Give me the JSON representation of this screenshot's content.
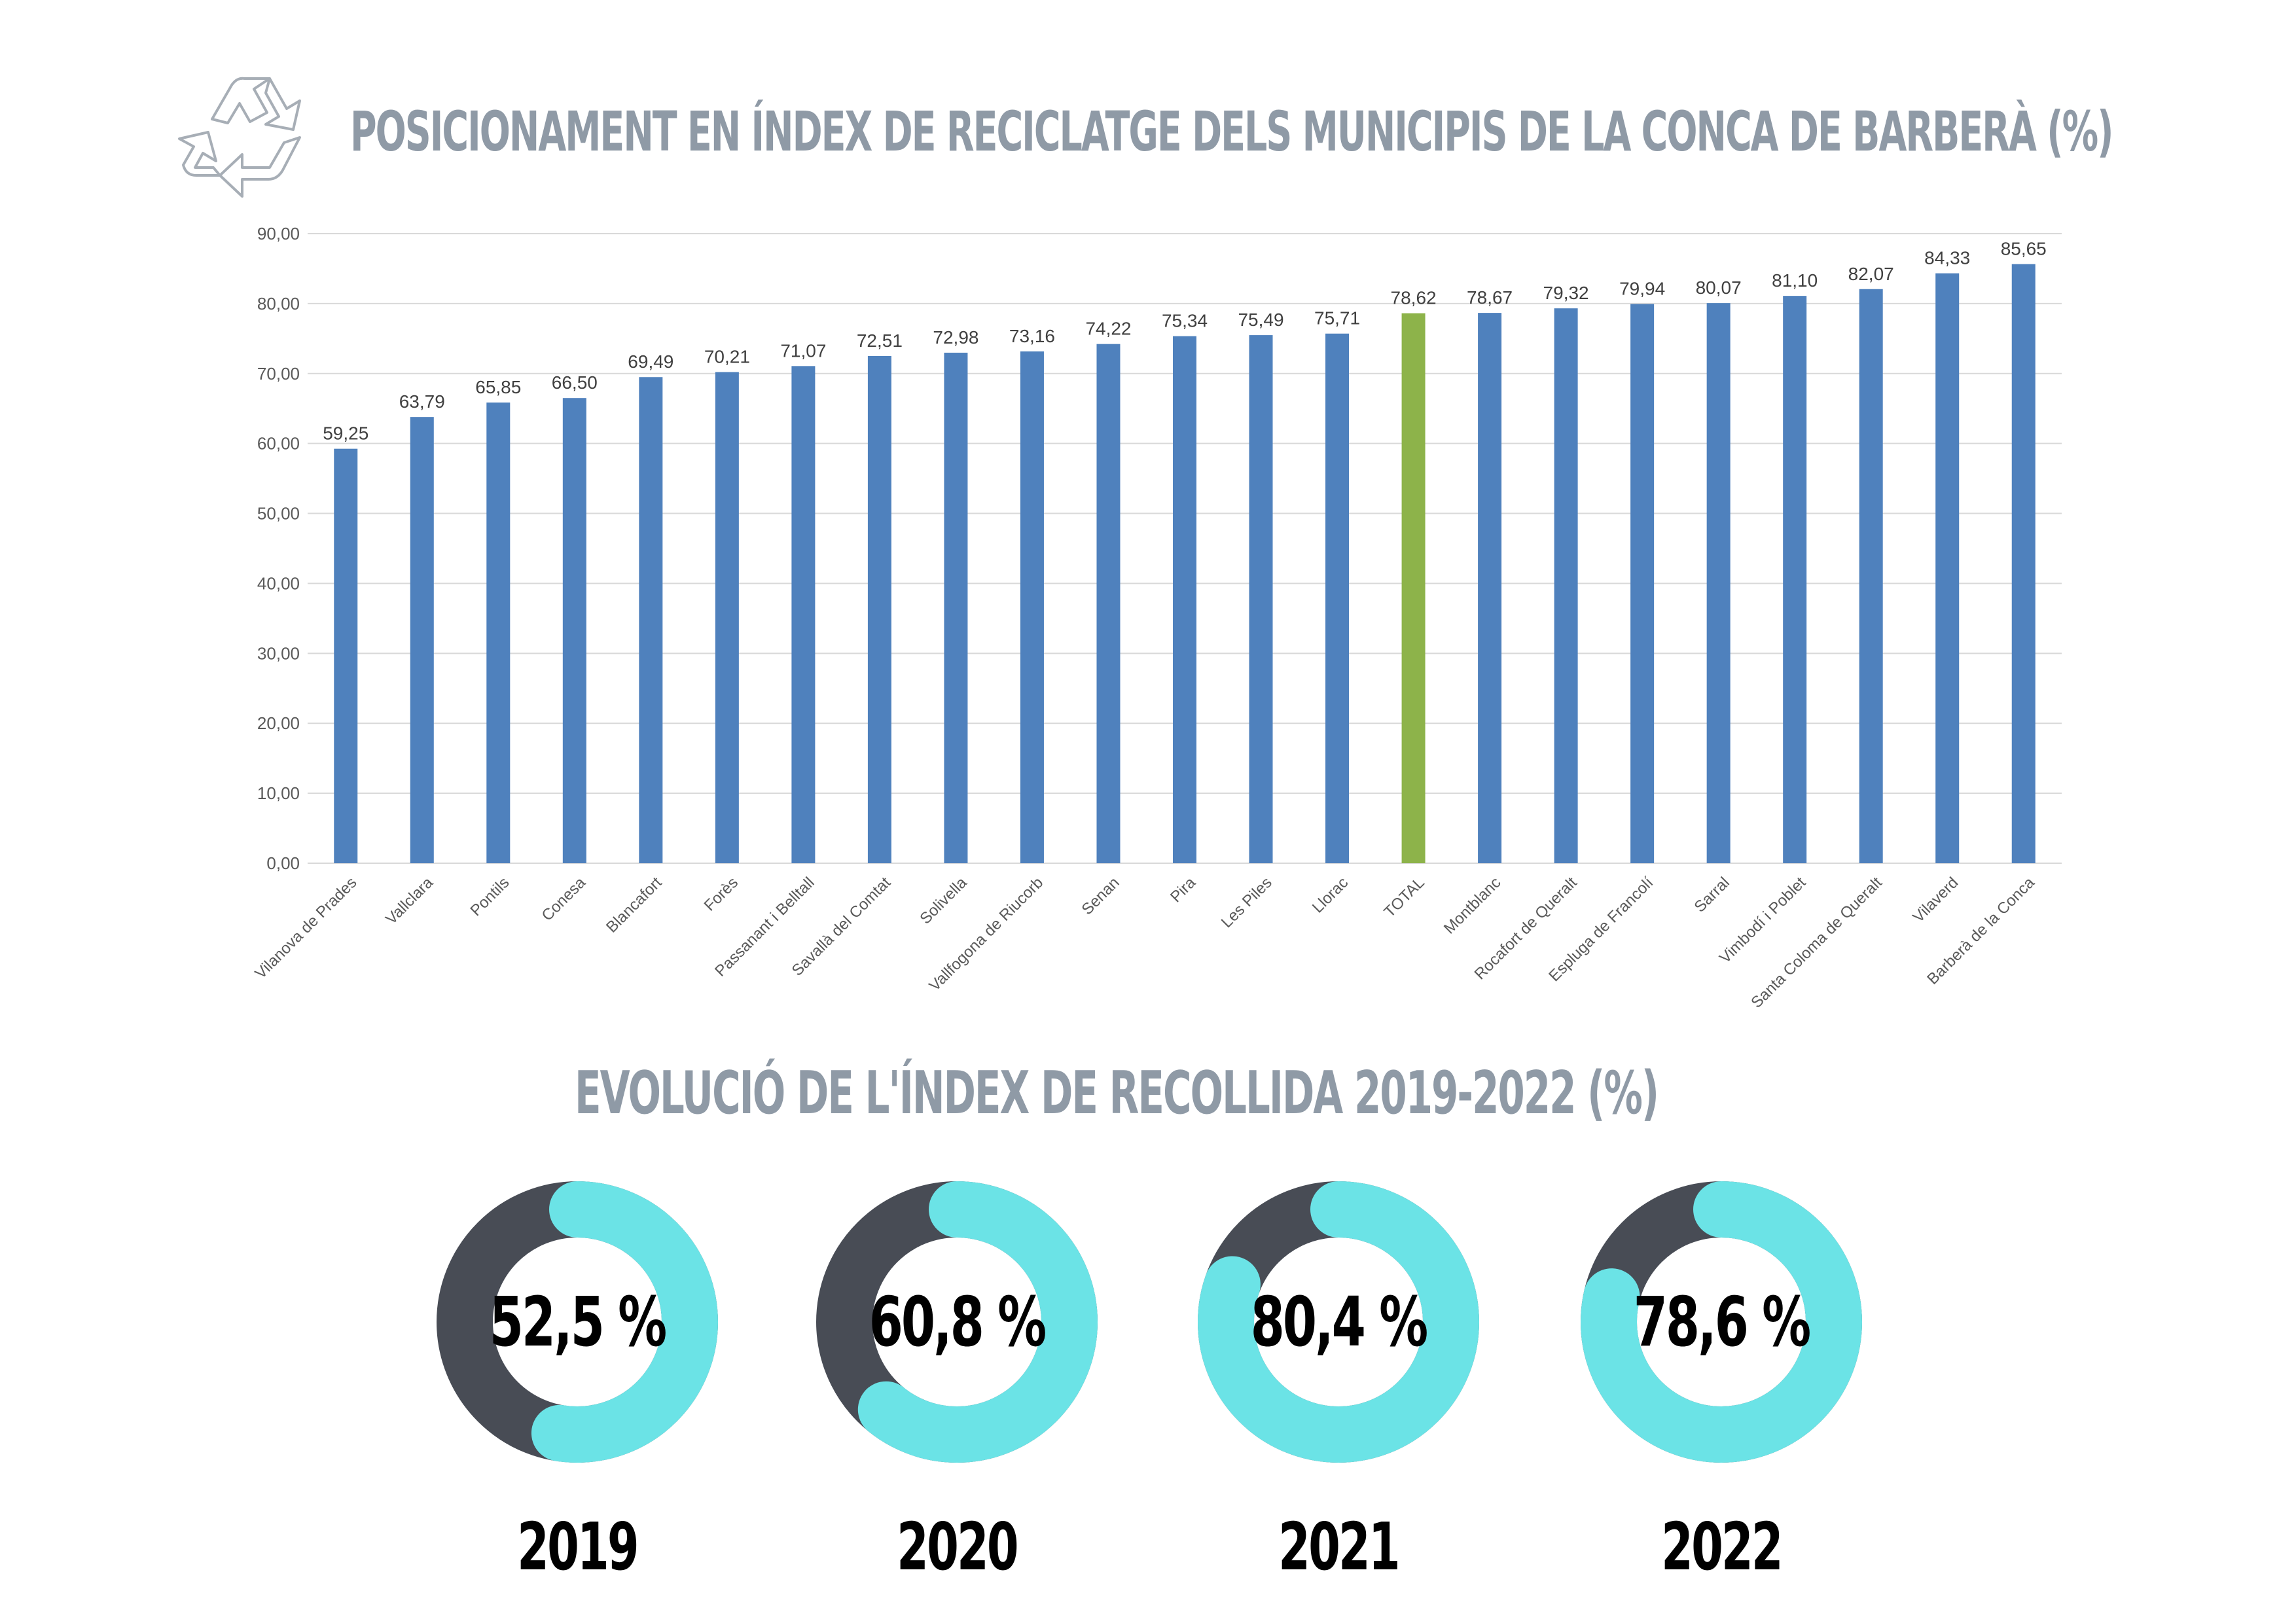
{
  "page": {
    "title": "POSICIONAMENT EN ÍNDEX DE RECICLATGE DELS MUNICIPIS DE LA CONCA DE BARBERÀ (%)",
    "subtitle": "EVOLUCIÓ DE L'ÍNDEX DE RECOLLIDA 2019-2022 (%)",
    "logo_icon": "recycle-icon"
  },
  "colors": {
    "bar": "#4f81bd",
    "highlight_bar": "#8db34a",
    "title": "#8f9aa6",
    "donut_dark": "#484c55",
    "donut_light": "#6be3e6",
    "grid": "#d9d9d9",
    "axis_text": "#595959"
  },
  "chart_data": [
    {
      "type": "bar",
      "title": "POSICIONAMENT EN ÍNDEX DE RECICLATGE DELS MUNICIPIS DE LA CONCA DE BARBERÀ (%)",
      "categories": [
        "Vilanova de Prades",
        "Vallclara",
        "Pontils",
        "Conesa",
        "Blancafort",
        "Forès",
        "Passanant i Belltall",
        "Savallà del Comtat",
        "Solivella",
        "Vallfogona de Riucorb",
        "Senan",
        "Pira",
        "Les Piles",
        "Llorac",
        "TOTAL",
        "Montblanc",
        "Rocafort de Queralt",
        "Espluga de Francolí",
        "Sarral",
        "Vimbodí i Poblet",
        "Santa Coloma de Queralt",
        "Vilaverd",
        "Barberà de la Conca"
      ],
      "values": [
        59.25,
        63.79,
        65.85,
        66.5,
        69.49,
        70.21,
        71.07,
        72.51,
        72.98,
        73.16,
        74.22,
        75.34,
        75.49,
        75.71,
        78.62,
        78.67,
        79.32,
        79.94,
        80.07,
        81.1,
        82.07,
        84.33,
        85.65
      ],
      "value_labels": [
        "59,25",
        "63,79",
        "65,85",
        "66,50",
        "69,49",
        "70,21",
        "71,07",
        "72,51",
        "72,98",
        "73,16",
        "74,22",
        "75,34",
        "75,49",
        "75,71",
        "78,62",
        "78,67",
        "79,32",
        "79,94",
        "80,07",
        "81,10",
        "82,07",
        "84,33",
        "85,65"
      ],
      "highlight_category": "TOTAL",
      "ylim": [
        0,
        90
      ],
      "yticks": [
        0,
        10,
        20,
        30,
        40,
        50,
        60,
        70,
        80,
        90
      ],
      "ytick_labels": [
        "0,00",
        "10,00",
        "20,00",
        "30,00",
        "40,00",
        "50,00",
        "60,00",
        "70,00",
        "80,00",
        "90,00"
      ],
      "grid": true,
      "legend": "none",
      "xlabel": "",
      "ylabel": ""
    },
    {
      "type": "pie",
      "title": "EVOLUCIÓ DE L'ÍNDEX DE RECOLLIDA 2019-2022 (%)",
      "style": "donut",
      "categories": [
        "2019",
        "2020",
        "2021",
        "2022"
      ],
      "values": [
        52.5,
        60.8,
        80.4,
        78.6
      ],
      "value_labels": [
        "52,5 %",
        "60,8 %",
        "80,4 %",
        "78,6 %"
      ]
    }
  ]
}
